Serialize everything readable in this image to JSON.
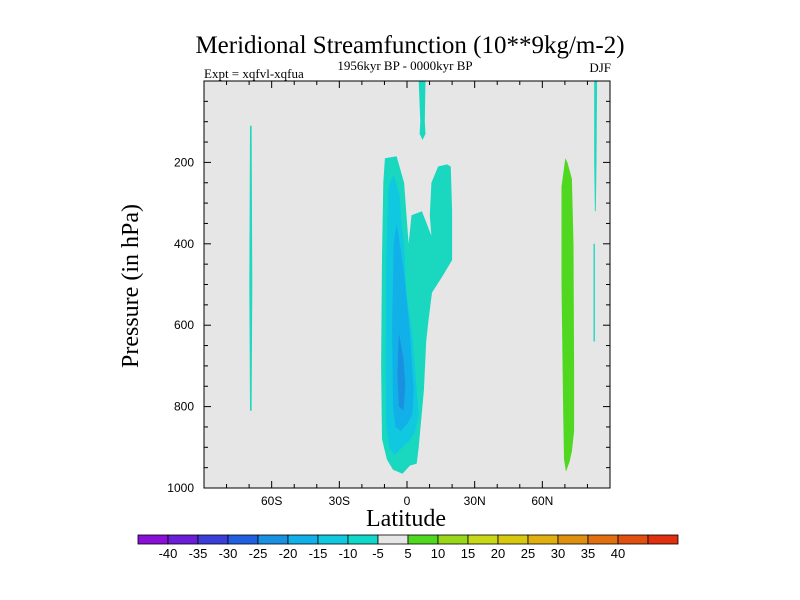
{
  "chart_data": {
    "type": "contour",
    "title": "Meridional Streamfunction (10**9kg/m-2)",
    "subtitle": "1956kyr BP - 0000kyr BP",
    "left_label": "Expt = xqfvl-xqfua",
    "right_label": "DJF",
    "xlabel": "Latitude",
    "ylabel": "Pressure (in hPa)",
    "xlim": [
      -90,
      90
    ],
    "ylim": [
      1000,
      0
    ],
    "x_ticks": [
      {
        "value": -60,
        "label": "60S"
      },
      {
        "value": -30,
        "label": "30S"
      },
      {
        "value": 0,
        "label": "0"
      },
      {
        "value": 30,
        "label": "30N"
      },
      {
        "value": 60,
        "label": "60N"
      }
    ],
    "y_ticks": [
      {
        "value": 200,
        "label": "200"
      },
      {
        "value": 400,
        "label": "400"
      },
      {
        "value": 600,
        "label": "600"
      },
      {
        "value": 800,
        "label": "800"
      },
      {
        "value": 1000,
        "label": "1000"
      }
    ],
    "background_color": "#e6e6e6",
    "colorbar": {
      "colors": [
        "#8a10d8",
        "#6a1ed8",
        "#3b3fd8",
        "#2060e0",
        "#1a90e0",
        "#12b0e8",
        "#10c8e0",
        "#10d8c8",
        "#e6e6e6",
        "#50d820",
        "#98d818",
        "#c8d818",
        "#d8c810",
        "#e0b010",
        "#e09010",
        "#e07010",
        "#e05010",
        "#e03010"
      ],
      "labels": [
        "-40",
        "-35",
        "-30",
        "-25",
        "-20",
        "-15",
        "-10",
        "-5",
        "5",
        "10",
        "15",
        "20",
        "25",
        "30",
        "35",
        "40"
      ]
    },
    "regions": [
      {
        "name": "nh-southern-thin-streak",
        "level": -5,
        "color": "#20d8c0",
        "points": [
          [
            -69.6,
            110
          ],
          [
            -68.9,
            110
          ],
          [
            -68.6,
            500
          ],
          [
            -68.9,
            810
          ],
          [
            -69.6,
            810
          ],
          [
            -69.9,
            500
          ]
        ]
      },
      {
        "name": "equatorial-cell-outer",
        "level": -5,
        "color": "#1ad8c0",
        "points": [
          [
            -9.8,
            190
          ],
          [
            -4.6,
            185
          ],
          [
            -1.3,
            250
          ],
          [
            0.7,
            400
          ],
          [
            2.0,
            330
          ],
          [
            4.3,
            325
          ],
          [
            6.6,
            320
          ],
          [
            10.8,
            380
          ],
          [
            10.1,
            330
          ],
          [
            10.8,
            250
          ],
          [
            13.8,
            210
          ],
          [
            17.7,
            205
          ],
          [
            19.4,
            210
          ],
          [
            20.0,
            320
          ],
          [
            20.0,
            440
          ],
          [
            15.7,
            480
          ],
          [
            11.1,
            520
          ],
          [
            9.5,
            590
          ],
          [
            8.5,
            640
          ],
          [
            7.5,
            760
          ],
          [
            5.2,
            900
          ],
          [
            4.3,
            940
          ],
          [
            1.3,
            945
          ],
          [
            -2.0,
            965
          ],
          [
            -6.2,
            955
          ],
          [
            -8.9,
            930
          ],
          [
            -11.1,
            880
          ],
          [
            -11.5,
            700
          ],
          [
            -11.1,
            430
          ],
          [
            -10.5,
            250
          ]
        ]
      },
      {
        "name": "equatorial-cell-inner",
        "level": -10,
        "color": "#10c8e0",
        "points": [
          [
            -5.9,
            230
          ],
          [
            -3.3,
            280
          ],
          [
            -2.3,
            360
          ],
          [
            -1.3,
            400
          ],
          [
            -0.3,
            520
          ],
          [
            2.3,
            620
          ],
          [
            4.3,
            760
          ],
          [
            5.2,
            820
          ],
          [
            3.6,
            860
          ],
          [
            1.6,
            880
          ],
          [
            -2.0,
            900
          ],
          [
            -5.6,
            920
          ],
          [
            -7.9,
            900
          ],
          [
            -9.2,
            850
          ],
          [
            -9.5,
            700
          ],
          [
            -9.2,
            440
          ],
          [
            -8.2,
            260
          ]
        ]
      },
      {
        "name": "equatorial-cell-core",
        "level": -15,
        "color": "#12b0e8",
        "points": [
          [
            -4.6,
            350
          ],
          [
            -2.6,
            420
          ],
          [
            -0.7,
            500
          ],
          [
            1.3,
            620
          ],
          [
            3.0,
            760
          ],
          [
            2.3,
            820
          ],
          [
            0.3,
            840
          ],
          [
            -2.6,
            860
          ],
          [
            -5.2,
            850
          ],
          [
            -6.2,
            800
          ],
          [
            -6.6,
            600
          ],
          [
            -5.9,
            400
          ]
        ]
      },
      {
        "name": "equatorial-cell-center",
        "level": -20,
        "color": "#1a90e0",
        "points": [
          [
            -3.6,
            620
          ],
          [
            -1.6,
            680
          ],
          [
            -0.7,
            750
          ],
          [
            -1.6,
            810
          ],
          [
            -3.6,
            800
          ],
          [
            -4.3,
            720
          ]
        ]
      },
      {
        "name": "tropical-upper-plume",
        "level": -5,
        "color": "#1ad8c0",
        "points": [
          [
            5.2,
            0
          ],
          [
            8.2,
            0
          ],
          [
            7.9,
            100
          ],
          [
            8.2,
            130
          ],
          [
            6.9,
            145
          ],
          [
            5.6,
            130
          ],
          [
            5.9,
            100
          ]
        ]
      },
      {
        "name": "nh-subtropical-band",
        "level": 10,
        "color": "#50d820",
        "points": [
          [
            70.2,
            190
          ],
          [
            71.1,
            200
          ],
          [
            73.1,
            240
          ],
          [
            73.8,
            400
          ],
          [
            74.1,
            700
          ],
          [
            74.1,
            860
          ],
          [
            73.1,
            910
          ],
          [
            72.1,
            935
          ],
          [
            70.5,
            960
          ],
          [
            69.6,
            930
          ],
          [
            69.2,
            800
          ],
          [
            68.5,
            500
          ],
          [
            68.5,
            260
          ]
        ]
      },
      {
        "name": "nh-polar-streak",
        "level": -5,
        "color": "#20d8c0",
        "points": [
          [
            83.0,
            0
          ],
          [
            84.3,
            0
          ],
          [
            84.0,
            200
          ],
          [
            83.7,
            320
          ],
          [
            83.3,
            320
          ],
          [
            83.0,
            200
          ]
        ]
      },
      {
        "name": "nh-polar-streak-lower",
        "level": -5,
        "color": "#20d8c0",
        "points": [
          [
            82.7,
            400
          ],
          [
            83.3,
            400
          ],
          [
            83.3,
            640
          ],
          [
            82.7,
            640
          ]
        ]
      }
    ]
  }
}
